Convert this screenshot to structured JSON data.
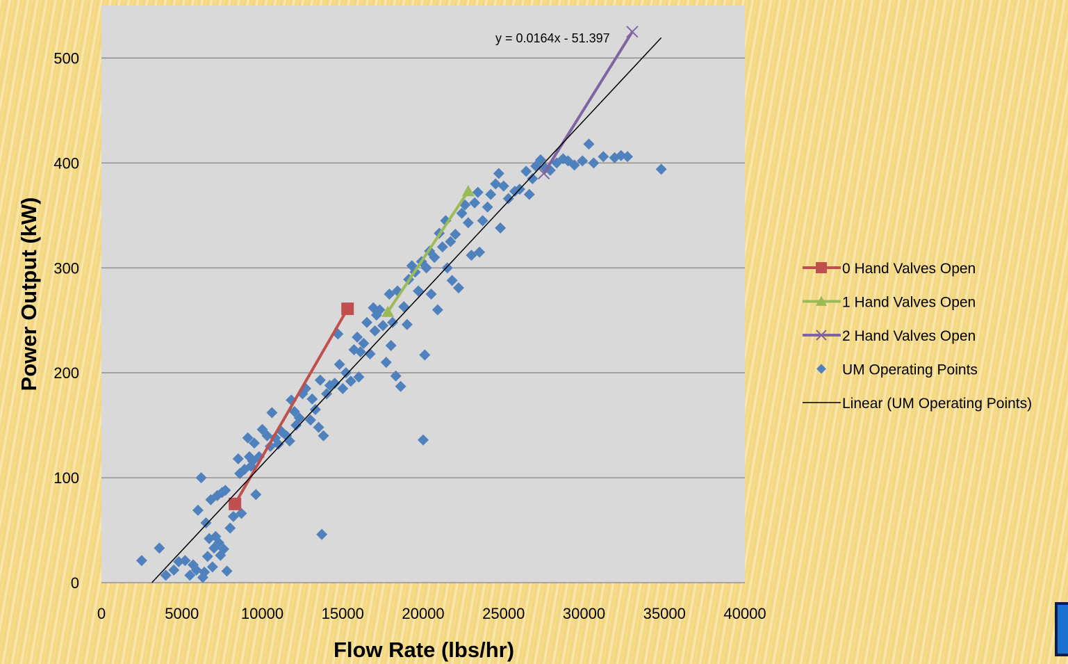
{
  "chart_data": {
    "type": "scatter",
    "title": "",
    "xlabel": "Flow Rate (lbs/hr)",
    "ylabel": "Power Output (kW)",
    "xlim": [
      0,
      40000
    ],
    "ylim": [
      0,
      550
    ],
    "xticks": [
      0,
      5000,
      10000,
      15000,
      20000,
      25000,
      30000,
      35000,
      40000
    ],
    "yticks": [
      0,
      100,
      200,
      300,
      400,
      500
    ],
    "grid": "horizontal",
    "legend_position": "right",
    "trendline": {
      "name": "Linear (UM Operating Points)",
      "equation": "y = 0.0164x - 51.397",
      "slope": 0.0164,
      "intercept": -51.397,
      "x_range": [
        3134,
        34800
      ],
      "color": "#000000"
    },
    "series": [
      {
        "name": "0 Hand Valves Open",
        "kind": "line-square",
        "color": "#c0504d",
        "x": [
          8300,
          15300
        ],
        "y": [
          75,
          261
        ]
      },
      {
        "name": "1 Hand Valves Open",
        "kind": "line-triangle",
        "color": "#9bbb59",
        "x": [
          17800,
          22800
        ],
        "y": [
          258,
          373
        ]
      },
      {
        "name": "2 Hand Valves Open",
        "kind": "line-x",
        "color": "#8064a2",
        "x": [
          27500,
          33000
        ],
        "y": [
          390,
          525
        ]
      },
      {
        "name": "UM Operating Points",
        "kind": "scatter-diamond",
        "color": "#4f81bd",
        "points": [
          [
            2500,
            21
          ],
          [
            3600,
            33
          ],
          [
            4000,
            7
          ],
          [
            4500,
            12
          ],
          [
            4800,
            20
          ],
          [
            5200,
            21
          ],
          [
            5500,
            7
          ],
          [
            5700,
            17
          ],
          [
            5900,
            12
          ],
          [
            6000,
            69
          ],
          [
            6200,
            100
          ],
          [
            6300,
            5
          ],
          [
            6400,
            10
          ],
          [
            6500,
            57
          ],
          [
            6600,
            25
          ],
          [
            6700,
            42
          ],
          [
            6800,
            79
          ],
          [
            6900,
            15
          ],
          [
            7000,
            33
          ],
          [
            7100,
            44
          ],
          [
            7200,
            83
          ],
          [
            7300,
            38
          ],
          [
            7400,
            26
          ],
          [
            7500,
            86
          ],
          [
            7600,
            32
          ],
          [
            7700,
            88
          ],
          [
            7800,
            11
          ],
          [
            8000,
            52
          ],
          [
            8200,
            63
          ],
          [
            8300,
            76
          ],
          [
            8500,
            118
          ],
          [
            8600,
            104
          ],
          [
            8700,
            66
          ],
          [
            8900,
            108
          ],
          [
            9100,
            138
          ],
          [
            9200,
            120
          ],
          [
            9300,
            111
          ],
          [
            9400,
            116
          ],
          [
            9500,
            133
          ],
          [
            9600,
            84
          ],
          [
            9800,
            120
          ],
          [
            10000,
            146
          ],
          [
            10300,
            140
          ],
          [
            10500,
            130
          ],
          [
            10600,
            162
          ],
          [
            10800,
            138
          ],
          [
            11000,
            132
          ],
          [
            11200,
            144
          ],
          [
            11500,
            140
          ],
          [
            11700,
            135
          ],
          [
            11800,
            174
          ],
          [
            12000,
            163
          ],
          [
            12100,
            150
          ],
          [
            12300,
            157
          ],
          [
            12500,
            180
          ],
          [
            12700,
            185
          ],
          [
            13000,
            155
          ],
          [
            13100,
            175
          ],
          [
            13300,
            165
          ],
          [
            13500,
            148
          ],
          [
            13600,
            193
          ],
          [
            13700,
            46
          ],
          [
            13800,
            140
          ],
          [
            14000,
            180
          ],
          [
            14200,
            188
          ],
          [
            14500,
            190
          ],
          [
            14700,
            237
          ],
          [
            14800,
            208
          ],
          [
            15000,
            185
          ],
          [
            15200,
            200
          ],
          [
            15500,
            192
          ],
          [
            15700,
            222
          ],
          [
            15900,
            234
          ],
          [
            16000,
            196
          ],
          [
            16100,
            220
          ],
          [
            16300,
            228
          ],
          [
            16500,
            248
          ],
          [
            16700,
            218
          ],
          [
            16900,
            262
          ],
          [
            17000,
            240
          ],
          [
            17100,
            255
          ],
          [
            17300,
            260
          ],
          [
            17500,
            245
          ],
          [
            17700,
            210
          ],
          [
            17900,
            275
          ],
          [
            18000,
            226
          ],
          [
            18100,
            248
          ],
          [
            18300,
            197
          ],
          [
            18400,
            278
          ],
          [
            18600,
            187
          ],
          [
            18800,
            263
          ],
          [
            19000,
            246
          ],
          [
            19100,
            289
          ],
          [
            19300,
            302
          ],
          [
            19500,
            296
          ],
          [
            19700,
            278
          ],
          [
            19900,
            306
          ],
          [
            20000,
            136
          ],
          [
            20100,
            217
          ],
          [
            20200,
            300
          ],
          [
            20400,
            316
          ],
          [
            20500,
            275
          ],
          [
            20700,
            310
          ],
          [
            20900,
            260
          ],
          [
            21000,
            333
          ],
          [
            21200,
            320
          ],
          [
            21400,
            345
          ],
          [
            21500,
            300
          ],
          [
            21700,
            325
          ],
          [
            21800,
            288
          ],
          [
            22000,
            332
          ],
          [
            22200,
            281
          ],
          [
            22400,
            352
          ],
          [
            22600,
            360
          ],
          [
            22800,
            343
          ],
          [
            23000,
            312
          ],
          [
            23200,
            362
          ],
          [
            23400,
            372
          ],
          [
            23500,
            315
          ],
          [
            23700,
            345
          ],
          [
            24000,
            358
          ],
          [
            24200,
            370
          ],
          [
            24500,
            380
          ],
          [
            24700,
            390
          ],
          [
            24800,
            338
          ],
          [
            25000,
            378
          ],
          [
            25300,
            366
          ],
          [
            25700,
            373
          ],
          [
            26000,
            375
          ],
          [
            26400,
            392
          ],
          [
            26600,
            370
          ],
          [
            26800,
            385
          ],
          [
            27000,
            397
          ],
          [
            27300,
            403
          ],
          [
            27600,
            395
          ],
          [
            27900,
            393
          ],
          [
            28300,
            400
          ],
          [
            28700,
            404
          ],
          [
            29000,
            402
          ],
          [
            29400,
            398
          ],
          [
            29900,
            402
          ],
          [
            30300,
            418
          ],
          [
            30600,
            400
          ],
          [
            31200,
            406
          ],
          [
            31900,
            405
          ],
          [
            32300,
            407
          ],
          [
            32700,
            406
          ],
          [
            34800,
            394
          ]
        ]
      }
    ]
  },
  "legend": {
    "items": [
      {
        "label": "0 Hand Valves Open",
        "kind": "line-square",
        "color": "#c0504d"
      },
      {
        "label": "1 Hand Valves Open",
        "kind": "line-triangle",
        "color": "#9bbb59"
      },
      {
        "label": "2 Hand Valves Open",
        "kind": "line-x",
        "color": "#8064a2"
      },
      {
        "label": "UM Operating Points",
        "kind": "scatter-diamond",
        "color": "#4f81bd"
      },
      {
        "label": "Linear (UM Operating Points)",
        "kind": "line",
        "color": "#000000"
      }
    ]
  },
  "colors": {
    "plot_background": "#d9d9d9",
    "gridline": "#868686",
    "page_background": "#f6dc8a"
  }
}
